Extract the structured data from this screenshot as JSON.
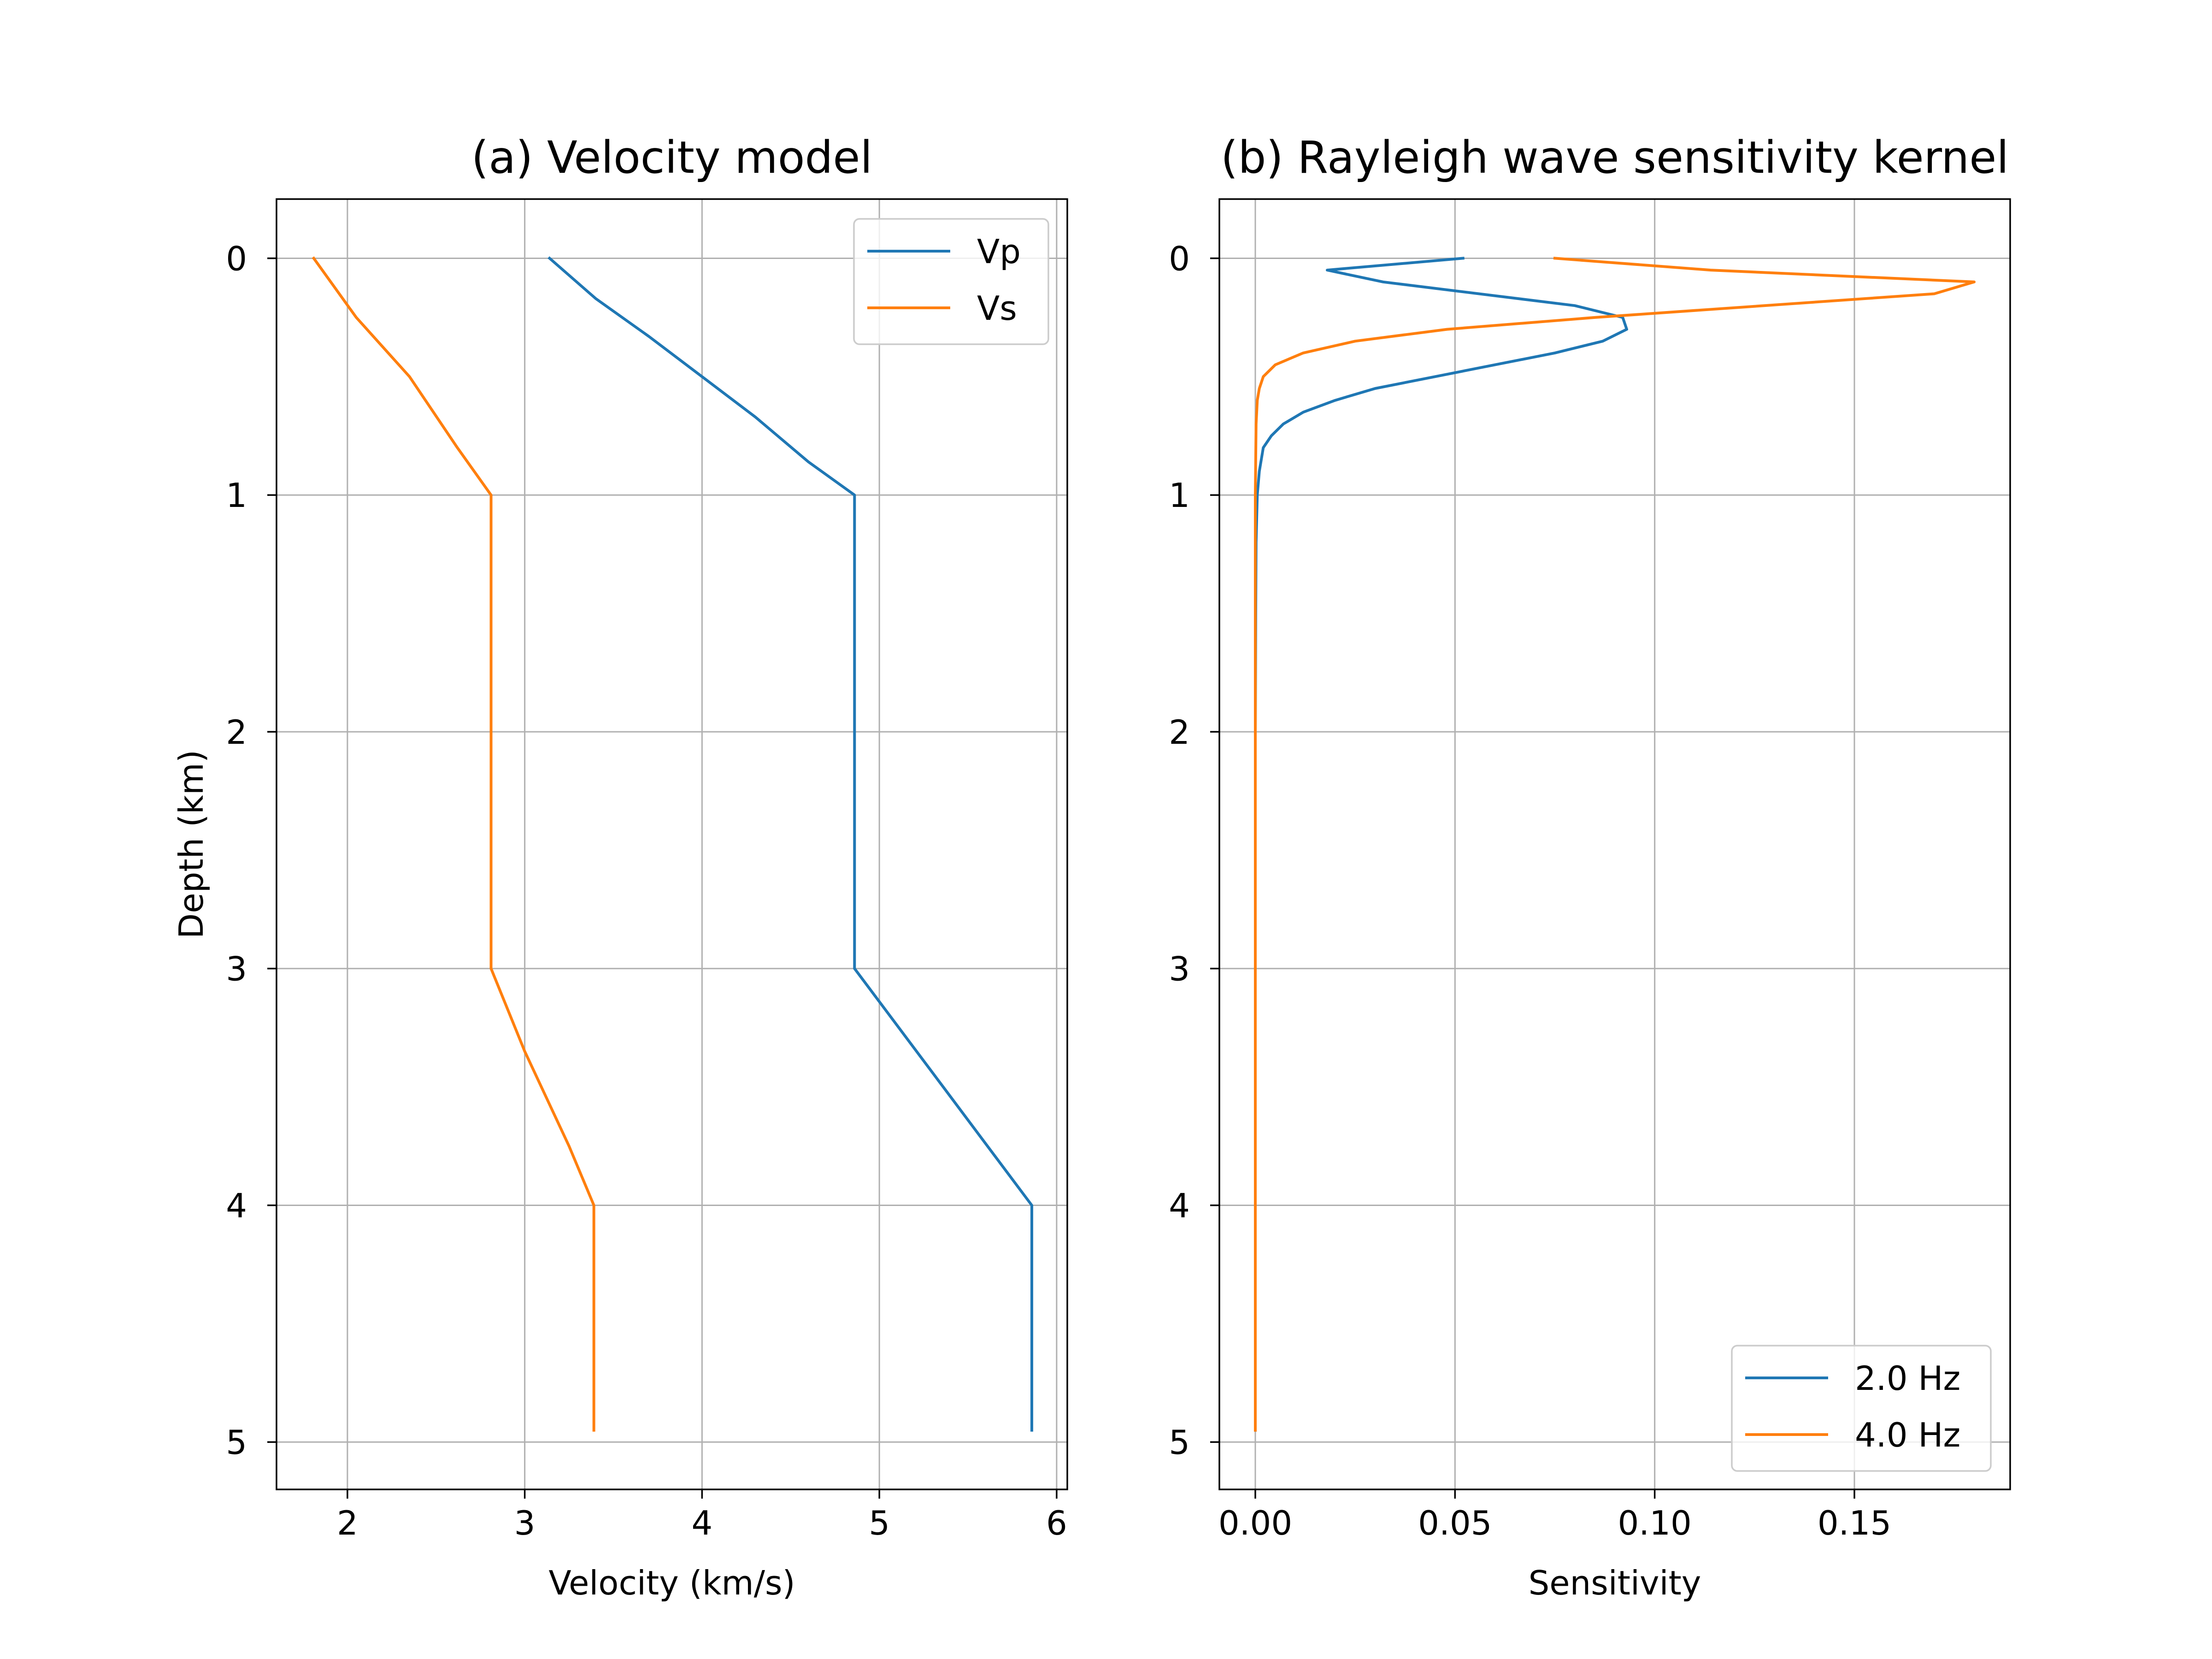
{
  "colors": {
    "blue": "#1f77b4",
    "orange": "#ff7f0e",
    "grid": "#b0b0b0"
  },
  "chart_data": [
    {
      "type": "line",
      "title": "(a) Velocity model",
      "xlabel": "Velocity (km/s)",
      "ylabel": "Depth (km)",
      "xlim": [
        1.6,
        6.06
      ],
      "ylim": [
        5.2,
        -0.25
      ],
      "y_inverted": true,
      "xticks": [
        2,
        3,
        4,
        5,
        6
      ],
      "xtick_labels": [
        "2",
        "3",
        "4",
        "5",
        "6"
      ],
      "yticks": [
        0,
        1,
        2,
        3,
        4,
        5
      ],
      "ytick_labels": [
        "0",
        "1",
        "2",
        "3",
        "4",
        "5"
      ],
      "grid": true,
      "legend_position": "top-right",
      "series": [
        {
          "name": "Vp",
          "color": "#1f77b4",
          "x": [
            3.14,
            3.4,
            3.7,
            4.0,
            4.3,
            4.6,
            4.86,
            4.86,
            4.86,
            5.36,
            5.86,
            5.86
          ],
          "y": [
            0,
            0.17,
            0.33,
            0.5,
            0.67,
            0.86,
            1.0,
            2.0,
            3.0,
            3.5,
            4.0,
            4.95
          ]
        },
        {
          "name": "Vs",
          "color": "#ff7f0e",
          "x": [
            1.81,
            2.05,
            2.35,
            2.62,
            2.81,
            2.81,
            2.81,
            3.0,
            3.25,
            3.39,
            3.39
          ],
          "y": [
            0,
            0.25,
            0.5,
            0.8,
            1.0,
            2.0,
            3.0,
            3.35,
            3.75,
            4.0,
            4.95
          ]
        }
      ]
    },
    {
      "type": "line",
      "title": "(b) Rayleigh wave sensitivity kernel",
      "xlabel": "Sensitivity",
      "ylabel": "",
      "xlim": [
        -0.009,
        0.189
      ],
      "ylim": [
        5.2,
        -0.25
      ],
      "y_inverted": true,
      "xticks": [
        0.0,
        0.05,
        0.1,
        0.15
      ],
      "xtick_labels": [
        "0.00",
        "0.05",
        "0.10",
        "0.15"
      ],
      "yticks": [
        0,
        1,
        2,
        3,
        4,
        5
      ],
      "ytick_labels": [
        "0",
        "1",
        "2",
        "3",
        "4",
        "5"
      ],
      "grid": true,
      "legend_position": "bottom-right",
      "series": [
        {
          "name": "2.0 Hz",
          "color": "#1f77b4",
          "x": [
            0.052,
            0.018,
            0.032,
            0.08,
            0.092,
            0.093,
            0.087,
            0.075,
            0.06,
            0.045,
            0.03,
            0.02,
            0.012,
            0.007,
            0.004,
            0.002,
            0.001,
            0.0005,
            0.0002,
            0.0001,
            0.0,
            0.0,
            0.0
          ],
          "y": [
            0,
            0.05,
            0.1,
            0.2,
            0.25,
            0.3,
            0.35,
            0.4,
            0.45,
            0.5,
            0.55,
            0.6,
            0.65,
            0.7,
            0.75,
            0.8,
            0.9,
            1.0,
            1.2,
            1.5,
            2.0,
            3.0,
            4.95
          ]
        },
        {
          "name": "4.0 Hz",
          "color": "#ff7f0e",
          "x": [
            0.075,
            0.114,
            0.18,
            0.17,
            0.085,
            0.048,
            0.025,
            0.012,
            0.005,
            0.002,
            0.001,
            0.0005,
            0.0002,
            0.0,
            0.0,
            0.0
          ],
          "y": [
            0,
            0.05,
            0.1,
            0.15,
            0.25,
            0.3,
            0.35,
            0.4,
            0.45,
            0.5,
            0.55,
            0.6,
            0.7,
            1.0,
            2.0,
            4.95
          ]
        }
      ]
    }
  ]
}
